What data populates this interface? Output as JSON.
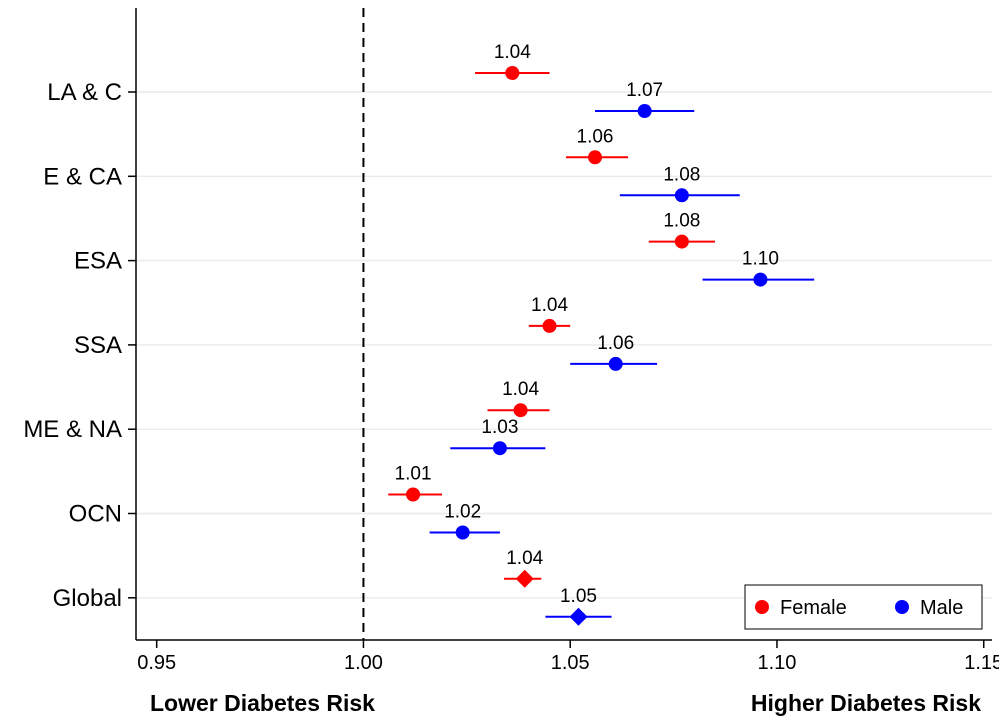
{
  "chart_data": {
    "type": "scatter",
    "subtype": "forest-plot",
    "title": "",
    "xlabel": "",
    "ylabel": "",
    "xlim": [
      0.945,
      1.152
    ],
    "x_ticks": [
      "0.95",
      "1.00",
      "1.05",
      "1.10",
      "1.15"
    ],
    "reference_line": 1.0,
    "categories": [
      "LA & C",
      "E & CA",
      "ESA",
      "SSA",
      "ME & NA",
      "OCN",
      "Global"
    ],
    "risk_labels": {
      "left": "Lower Diabetes Risk",
      "right": "Higher Diabetes Risk"
    },
    "series": [
      {
        "name": "Female",
        "color": "#ff0000",
        "points": [
          {
            "category": "LA & C",
            "estimate": 1.036,
            "lower": 1.027,
            "upper": 1.045,
            "label": "1.04",
            "marker": "circle"
          },
          {
            "category": "E & CA",
            "estimate": 1.056,
            "lower": 1.049,
            "upper": 1.064,
            "label": "1.06",
            "marker": "circle"
          },
          {
            "category": "ESA",
            "estimate": 1.077,
            "lower": 1.069,
            "upper": 1.085,
            "label": "1.08",
            "marker": "circle"
          },
          {
            "category": "SSA",
            "estimate": 1.045,
            "lower": 1.04,
            "upper": 1.05,
            "label": "1.04",
            "marker": "circle"
          },
          {
            "category": "ME & NA",
            "estimate": 1.038,
            "lower": 1.03,
            "upper": 1.045,
            "label": "1.04",
            "marker": "circle"
          },
          {
            "category": "OCN",
            "estimate": 1.012,
            "lower": 1.006,
            "upper": 1.019,
            "label": "1.01",
            "marker": "circle"
          },
          {
            "category": "Global",
            "estimate": 1.039,
            "lower": 1.034,
            "upper": 1.043,
            "label": "1.04",
            "marker": "diamond"
          }
        ]
      },
      {
        "name": "Male",
        "color": "#0000ff",
        "points": [
          {
            "category": "LA & C",
            "estimate": 1.068,
            "lower": 1.056,
            "upper": 1.08,
            "label": "1.07",
            "marker": "circle"
          },
          {
            "category": "E & CA",
            "estimate": 1.077,
            "lower": 1.062,
            "upper": 1.091,
            "label": "1.08",
            "marker": "circle"
          },
          {
            "category": "ESA",
            "estimate": 1.096,
            "lower": 1.082,
            "upper": 1.109,
            "label": "1.10",
            "marker": "circle"
          },
          {
            "category": "SSA",
            "estimate": 1.061,
            "lower": 1.05,
            "upper": 1.071,
            "label": "1.06",
            "marker": "circle"
          },
          {
            "category": "ME & NA",
            "estimate": 1.033,
            "lower": 1.021,
            "upper": 1.044,
            "label": "1.03",
            "marker": "circle"
          },
          {
            "category": "OCN",
            "estimate": 1.024,
            "lower": 1.016,
            "upper": 1.033,
            "label": "1.02",
            "marker": "circle"
          },
          {
            "category": "Global",
            "estimate": 1.052,
            "lower": 1.044,
            "upper": 1.06,
            "label": "1.05",
            "marker": "diamond"
          }
        ]
      }
    ],
    "grid": true,
    "legend": {
      "position": "bottom-right",
      "entries": [
        "Female",
        "Male"
      ]
    }
  }
}
